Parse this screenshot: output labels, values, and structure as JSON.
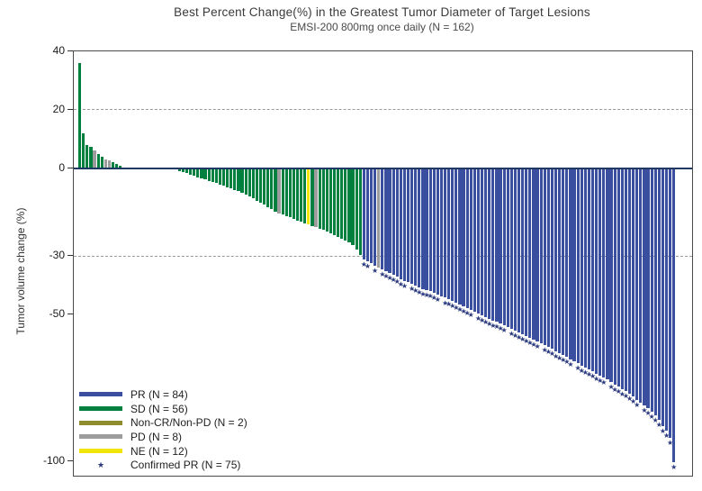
{
  "title": "Best Percent Change(%) in the Greatest Tumor Diameter of Target Lesions",
  "subtitle": "EMSI-200 800mg once daily (N = 162)",
  "y_axis": {
    "label": "Tumor volume change (%)",
    "range": [
      -105,
      40
    ],
    "ticks": [
      {
        "v": 40,
        "label": "40",
        "grid": false
      },
      {
        "v": 20,
        "label": "20",
        "grid": true
      },
      {
        "v": 0,
        "label": "0",
        "grid": false
      },
      {
        "v": -30,
        "label": "-30",
        "grid": true
      },
      {
        "v": -50,
        "label": "-50",
        "grid": false
      },
      {
        "v": -100,
        "label": "-100",
        "grid": false
      }
    ],
    "zero_line_color": "#1F3864"
  },
  "category_colors": {
    "PR": "#3B4FA0",
    "SD": "#00803E",
    "NC": "#8D8D2D",
    "PD": "#9C9C9C",
    "NE": "#F2E50B"
  },
  "marker_color": "#2B3A7E",
  "legend": {
    "items": [
      {
        "key": "PR",
        "label": "PR (N = 84)",
        "type": "swatch"
      },
      {
        "key": "SD",
        "label": "SD (N = 56)",
        "type": "swatch"
      },
      {
        "key": "NC",
        "label": "Non-CR/Non-PD (N = 2)",
        "type": "swatch"
      },
      {
        "key": "PD",
        "label": "PD (N = 8)",
        "type": "swatch"
      },
      {
        "key": "NE",
        "label": "NE (N = 12)",
        "type": "swatch"
      },
      {
        "key": "CONFIRMED",
        "label": "Confirmed PR (N = 75)",
        "type": "star"
      }
    ]
  },
  "chart_data": {
    "type": "bar",
    "subtype": "waterfall",
    "n_total": 162,
    "note_categories": {
      "PR": 84,
      "SD": 56,
      "NC": 2,
      "PD": 8,
      "NE": 12,
      "confirmed_pr_stars": 75
    },
    "bars": [
      [
        36,
        "SD",
        0
      ],
      [
        12,
        "SD",
        0
      ],
      [
        8,
        "SD",
        0
      ],
      [
        7.5,
        "SD",
        0
      ],
      [
        6,
        "PD",
        0
      ],
      [
        5,
        "SD",
        0
      ],
      [
        4,
        "SD",
        0
      ],
      [
        3,
        "PD",
        0
      ],
      [
        2.8,
        "PD",
        0
      ],
      [
        2.2,
        "SD",
        0
      ],
      [
        1.5,
        "SD",
        0
      ],
      [
        0.8,
        "SD",
        0
      ],
      [
        0.4,
        "NE",
        0
      ],
      [
        0.3,
        "NE",
        0
      ],
      [
        0.3,
        "NE",
        0
      ],
      [
        0.2,
        "PD",
        0
      ],
      [
        0.2,
        "NE",
        0
      ],
      [
        0.1,
        "NE",
        0
      ],
      [
        0,
        "NC",
        0
      ],
      [
        0,
        "NC",
        0
      ],
      [
        -0.1,
        "NE",
        0
      ],
      [
        -0.1,
        "NE",
        0
      ],
      [
        -0.2,
        "NE",
        0
      ],
      [
        -0.2,
        "PD",
        0
      ],
      [
        -0.3,
        "NE",
        0
      ],
      [
        -0.3,
        "NE",
        0
      ],
      [
        -0.4,
        "NE",
        0
      ],
      [
        -0.8,
        "SD",
        0
      ],
      [
        -1.2,
        "SD",
        0
      ],
      [
        -1.7,
        "SD",
        0
      ],
      [
        -2.2,
        "SD",
        0
      ],
      [
        -2.6,
        "SD",
        0
      ],
      [
        -3,
        "SD",
        0
      ],
      [
        -3.4,
        "SD",
        0
      ],
      [
        -3.8,
        "SD",
        0
      ],
      [
        -4.3,
        "SD",
        0
      ],
      [
        -4.7,
        "SD",
        0
      ],
      [
        -5.1,
        "SD",
        0
      ],
      [
        -5.5,
        "SD",
        0
      ],
      [
        -6,
        "SD",
        0
      ],
      [
        -6.4,
        "SD",
        0
      ],
      [
        -6.9,
        "SD",
        0
      ],
      [
        -7.3,
        "SD",
        0
      ],
      [
        -7.8,
        "SD",
        0
      ],
      [
        -8.4,
        "SD",
        0
      ],
      [
        -8.9,
        "SD",
        0
      ],
      [
        -9.5,
        "SD",
        0
      ],
      [
        -10.2,
        "SD",
        0
      ],
      [
        -11,
        "SD",
        0
      ],
      [
        -11.6,
        "SD",
        0
      ],
      [
        -12.4,
        "SD",
        0
      ],
      [
        -13.2,
        "SD",
        0
      ],
      [
        -14,
        "SD",
        0
      ],
      [
        -14.8,
        "SD",
        0
      ],
      [
        -15.5,
        "PD",
        0
      ],
      [
        -15.8,
        "SD",
        0
      ],
      [
        -16.3,
        "SD",
        0
      ],
      [
        -16.8,
        "SD",
        0
      ],
      [
        -17.3,
        "SD",
        0
      ],
      [
        -17.8,
        "SD",
        0
      ],
      [
        -18.3,
        "SD",
        0
      ],
      [
        -18.8,
        "SD",
        0
      ],
      [
        -19.2,
        "NE",
        0
      ],
      [
        -19.6,
        "SD",
        0
      ],
      [
        -20.1,
        "PD",
        0
      ],
      [
        -20.5,
        "SD",
        0
      ],
      [
        -21,
        "SD",
        0
      ],
      [
        -21.6,
        "SD",
        0
      ],
      [
        -22.2,
        "SD",
        0
      ],
      [
        -22.8,
        "SD",
        0
      ],
      [
        -23.4,
        "SD",
        0
      ],
      [
        -24,
        "SD",
        0
      ],
      [
        -24.7,
        "SD",
        0
      ],
      [
        -25.4,
        "SD",
        0
      ],
      [
        -26.2,
        "SD",
        0
      ],
      [
        -27.8,
        "SD",
        0
      ],
      [
        -29.5,
        "SD",
        0
      ],
      [
        -31,
        "PR",
        1
      ],
      [
        -31.8,
        "PR",
        1
      ],
      [
        -32.4,
        "PR",
        0
      ],
      [
        -33.2,
        "PR",
        1
      ],
      [
        -33.8,
        "PD",
        0
      ],
      [
        -34.4,
        "PR",
        1
      ],
      [
        -35,
        "PR",
        1
      ],
      [
        -35.8,
        "PR",
        1
      ],
      [
        -36.4,
        "PR",
        1
      ],
      [
        -37,
        "PR",
        1
      ],
      [
        -37.8,
        "PR",
        1
      ],
      [
        -38.4,
        "PR",
        1
      ],
      [
        -38.9,
        "PR",
        0
      ],
      [
        -39.3,
        "PR",
        1
      ],
      [
        -40,
        "PR",
        1
      ],
      [
        -40.8,
        "PR",
        1
      ],
      [
        -41.2,
        "PR",
        1
      ],
      [
        -41.6,
        "PR",
        1
      ],
      [
        -42,
        "PR",
        1
      ],
      [
        -42.6,
        "PR",
        1
      ],
      [
        -43.2,
        "PR",
        1
      ],
      [
        -43.7,
        "PR",
        0
      ],
      [
        -44.2,
        "PR",
        1
      ],
      [
        -44.8,
        "PR",
        1
      ],
      [
        -45.4,
        "PR",
        1
      ],
      [
        -46,
        "PR",
        1
      ],
      [
        -46.6,
        "PR",
        1
      ],
      [
        -47.2,
        "PR",
        1
      ],
      [
        -47.8,
        "PR",
        1
      ],
      [
        -48.4,
        "PR",
        1
      ],
      [
        -49,
        "PR",
        0
      ],
      [
        -49.6,
        "PR",
        1
      ],
      [
        -50.2,
        "PR",
        1
      ],
      [
        -50.8,
        "PR",
        1
      ],
      [
        -51.4,
        "PR",
        1
      ],
      [
        -52,
        "PR",
        1
      ],
      [
        -52.5,
        "PR",
        1
      ],
      [
        -53,
        "PR",
        1
      ],
      [
        -53.6,
        "PR",
        1
      ],
      [
        -54.2,
        "PR",
        0
      ],
      [
        -54.8,
        "PR",
        1
      ],
      [
        -55.4,
        "PR",
        1
      ],
      [
        -56,
        "PR",
        1
      ],
      [
        -56.6,
        "PR",
        1
      ],
      [
        -57.2,
        "PR",
        1
      ],
      [
        -57.8,
        "PR",
        1
      ],
      [
        -58.4,
        "PR",
        1
      ],
      [
        -59,
        "PR",
        1
      ],
      [
        -59.6,
        "PR",
        0
      ],
      [
        -60.3,
        "PR",
        1
      ],
      [
        -61,
        "PR",
        1
      ],
      [
        -61.7,
        "PR",
        1
      ],
      [
        -62.4,
        "PR",
        1
      ],
      [
        -63.1,
        "PR",
        1
      ],
      [
        -63.8,
        "PR",
        1
      ],
      [
        -64.5,
        "PR",
        1
      ],
      [
        -65.2,
        "PR",
        1
      ],
      [
        -65.9,
        "PR",
        0
      ],
      [
        -66.6,
        "PR",
        1
      ],
      [
        -67.3,
        "PR",
        1
      ],
      [
        -68,
        "PR",
        1
      ],
      [
        -68.7,
        "PR",
        1
      ],
      [
        -69.4,
        "PR",
        1
      ],
      [
        -70.1,
        "PR",
        1
      ],
      [
        -70.8,
        "PR",
        1
      ],
      [
        -71.5,
        "PR",
        1
      ],
      [
        -72.2,
        "PR",
        0
      ],
      [
        -73,
        "PR",
        1
      ],
      [
        -73.8,
        "PR",
        1
      ],
      [
        -74.6,
        "PR",
        1
      ],
      [
        -75.4,
        "PR",
        1
      ],
      [
        -76.2,
        "PR",
        1
      ],
      [
        -77,
        "PR",
        1
      ],
      [
        -78,
        "PR",
        1
      ],
      [
        -79,
        "PR",
        1
      ],
      [
        -80,
        "PR",
        0
      ],
      [
        -81,
        "PR",
        1
      ],
      [
        -82,
        "PR",
        1
      ],
      [
        -83,
        "PR",
        1
      ],
      [
        -84.5,
        "PR",
        1
      ],
      [
        -86,
        "PR",
        1
      ],
      [
        -88,
        "PR",
        1
      ],
      [
        -89.5,
        "PR",
        1
      ],
      [
        -92,
        "PR",
        1
      ],
      [
        -100.5,
        "PR",
        1
      ]
    ]
  }
}
